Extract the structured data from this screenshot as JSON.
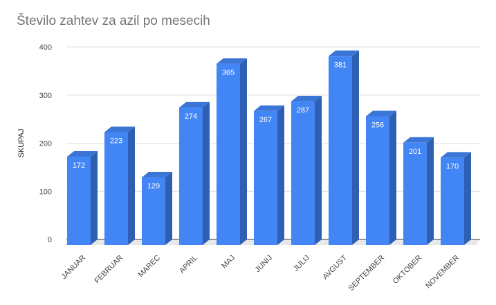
{
  "chart_data": {
    "type": "bar",
    "title": "Število zahtev za azil po mesecih",
    "xlabel": "",
    "ylabel": "SKUPAJ",
    "categories": [
      "JANUAR",
      "FEBRUAR",
      "MAREC",
      "APRIL",
      "MAJ",
      "JUNIJ",
      "JULIJ",
      "AVGUST",
      "SEPTEMBER",
      "OKTOBER",
      "NOVEMBER"
    ],
    "values": [
      172,
      223,
      129,
      274,
      365,
      267,
      287,
      381,
      256,
      201,
      170
    ],
    "data_labels": [
      "172",
      "223",
      "129",
      "274",
      "365",
      "267",
      "287",
      "381",
      "256",
      "201",
      "170"
    ],
    "ylim": [
      0,
      400
    ],
    "yticks": [
      0,
      100,
      200,
      300,
      400
    ],
    "ytick_labels": [
      "0",
      "100",
      "200",
      "300",
      "400"
    ],
    "grid": true,
    "legend": "none",
    "style": "3d-bar",
    "colors": {
      "bar_front": "#4285f4",
      "bar_side": "#2f5fb3",
      "bar_top": "#3b76d6",
      "grid": "#dddddd",
      "floor": "#e8e8e8",
      "title": "#757575"
    }
  }
}
